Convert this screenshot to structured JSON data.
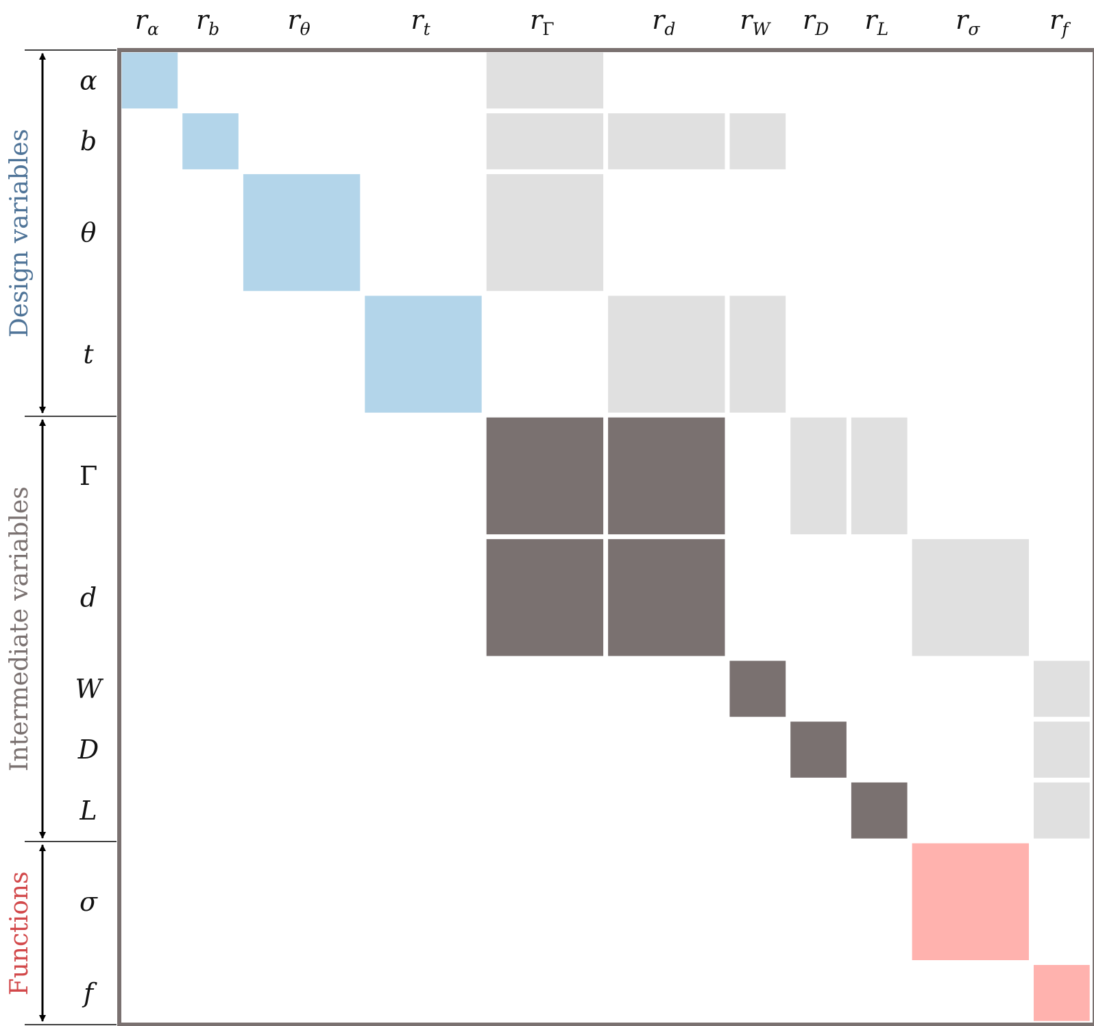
{
  "colors": {
    "frame": "#7a7170",
    "design": "#b3d5ea",
    "intermediate": "#7a7170",
    "function": "#ffb2ae",
    "dependency": "#e0e0e0",
    "design_label": "#4e7397",
    "intermediate_label": "#7a7170",
    "function_label": "#d2484a"
  },
  "groups": {
    "design": "Design variables",
    "intermediate": "Intermediate variables",
    "functions": "Functions"
  },
  "row_labels": [
    {
      "name": "α",
      "upright": false
    },
    {
      "name": "b",
      "upright": false
    },
    {
      "name": "θ",
      "upright": false
    },
    {
      "name": "t",
      "upright": false
    },
    {
      "name": "Γ",
      "upright": true
    },
    {
      "name": "d",
      "upright": false
    },
    {
      "name": "W",
      "upright": false
    },
    {
      "name": "D",
      "upright": false
    },
    {
      "name": "L",
      "upright": false
    },
    {
      "name": "σ",
      "upright": false
    },
    {
      "name": "f",
      "upright": false
    }
  ],
  "column_labels": [
    {
      "base": "r",
      "sub": "α",
      "sub_upright": false
    },
    {
      "base": "r",
      "sub": "b",
      "sub_upright": false
    },
    {
      "base": "r",
      "sub": "θ",
      "sub_upright": false
    },
    {
      "base": "r",
      "sub": "t",
      "sub_upright": false
    },
    {
      "base": "r",
      "sub": "Γ",
      "sub_upright": true
    },
    {
      "base": "r",
      "sub": "d",
      "sub_upright": false
    },
    {
      "base": "r",
      "sub": "W",
      "sub_upright": false
    },
    {
      "base": "r",
      "sub": "D",
      "sub_upright": false
    },
    {
      "base": "r",
      "sub": "L",
      "sub_upright": false
    },
    {
      "base": "r",
      "sub": "σ",
      "sub_upright": false
    },
    {
      "base": "r",
      "sub": "f",
      "sub_upright": false
    }
  ],
  "variable_sizes": [
    1,
    1,
    2,
    2,
    2,
    2,
    1,
    1,
    1,
    2,
    1
  ],
  "blocks": [
    {
      "row": 0,
      "col": 0,
      "kind": "design"
    },
    {
      "row": 1,
      "col": 1,
      "kind": "design"
    },
    {
      "row": 2,
      "col": 2,
      "kind": "design"
    },
    {
      "row": 3,
      "col": 3,
      "kind": "design"
    },
    {
      "row": 0,
      "col": 4,
      "kind": "dependency"
    },
    {
      "row": 1,
      "col": 4,
      "kind": "dependency"
    },
    {
      "row": 1,
      "col": 5,
      "kind": "dependency"
    },
    {
      "row": 1,
      "col": 6,
      "kind": "dependency"
    },
    {
      "row": 2,
      "col": 4,
      "kind": "dependency"
    },
    {
      "row": 3,
      "col": 5,
      "kind": "dependency"
    },
    {
      "row": 3,
      "col": 6,
      "kind": "dependency"
    },
    {
      "row": 4,
      "col": 4,
      "kind": "intermediate"
    },
    {
      "row": 4,
      "col": 5,
      "kind": "intermediate"
    },
    {
      "row": 5,
      "col": 4,
      "kind": "intermediate"
    },
    {
      "row": 5,
      "col": 5,
      "kind": "intermediate"
    },
    {
      "row": 4,
      "col": 7,
      "kind": "dependency"
    },
    {
      "row": 4,
      "col": 8,
      "kind": "dependency"
    },
    {
      "row": 5,
      "col": 9,
      "kind": "dependency"
    },
    {
      "row": 6,
      "col": 6,
      "kind": "intermediate"
    },
    {
      "row": 7,
      "col": 7,
      "kind": "intermediate"
    },
    {
      "row": 8,
      "col": 8,
      "kind": "intermediate"
    },
    {
      "row": 6,
      "col": 10,
      "kind": "dependency"
    },
    {
      "row": 7,
      "col": 10,
      "kind": "dependency"
    },
    {
      "row": 8,
      "col": 10,
      "kind": "dependency"
    },
    {
      "row": 9,
      "col": 9,
      "kind": "function"
    },
    {
      "row": 10,
      "col": 10,
      "kind": "function"
    }
  ]
}
